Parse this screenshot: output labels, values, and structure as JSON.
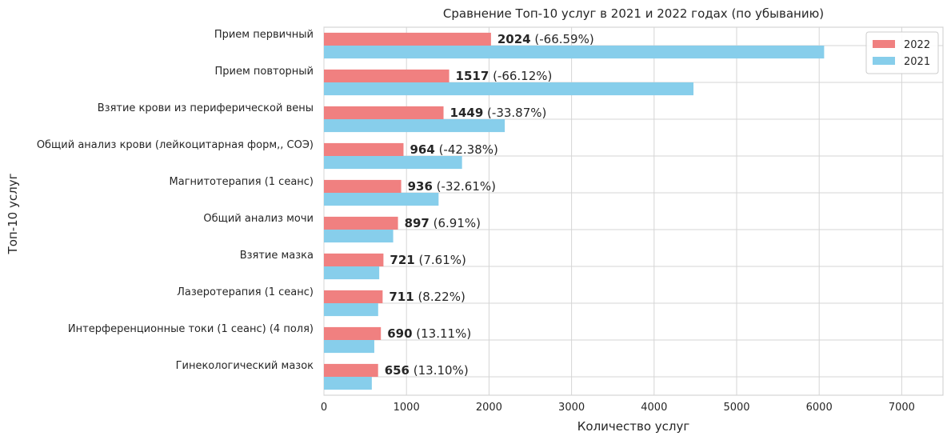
{
  "chart_data": {
    "type": "bar",
    "orientation": "horizontal",
    "title": "Сравнение Топ-10 услуг в 2021 и 2022 годах (по убыванию)",
    "xlabel": "Количество услуг",
    "ylabel": "Топ-10 услуг",
    "xlim": [
      0,
      7500
    ],
    "xticks": [
      0,
      1000,
      2000,
      3000,
      4000,
      5000,
      6000,
      7000
    ],
    "grid": true,
    "legend_position": "top-right",
    "categories": [
      "Прием первичный",
      "Прием повторный",
      "Взятие крови из периферической вены",
      "Общий анализ крови (лейкоцитарная форм,, СОЭ)",
      "Магнитотерапия (1 сеанс)",
      "Общий анализ мочи",
      "Взятие мазка",
      "Лазеротерапия (1 сеанс)",
      "Интерференционные токи (1 сеанс) (4 поля)",
      "Гинекологический мазок"
    ],
    "series": [
      {
        "name": "2022",
        "color": "#f08080",
        "values": [
          2024,
          1517,
          1449,
          964,
          936,
          897,
          721,
          711,
          690,
          656
        ]
      },
      {
        "name": "2021",
        "color": "#87ceeb",
        "values": [
          6060,
          4477,
          2191,
          1673,
          1389,
          839,
          670,
          657,
          610,
          580
        ]
      }
    ],
    "data_labels": [
      {
        "value": "2024",
        "change": "(-66.59%)"
      },
      {
        "value": "1517",
        "change": "(-66.12%)"
      },
      {
        "value": "1449",
        "change": "(-33.87%)"
      },
      {
        "value": "964",
        "change": "(-42.38%)"
      },
      {
        "value": "936",
        "change": "(-32.61%)"
      },
      {
        "value": "897",
        "change": "(6.91%)"
      },
      {
        "value": "721",
        "change": "(7.61%)"
      },
      {
        "value": "711",
        "change": "(8.22%)"
      },
      {
        "value": "690",
        "change": "(13.11%)"
      },
      {
        "value": "656",
        "change": "(13.10%)"
      }
    ]
  }
}
